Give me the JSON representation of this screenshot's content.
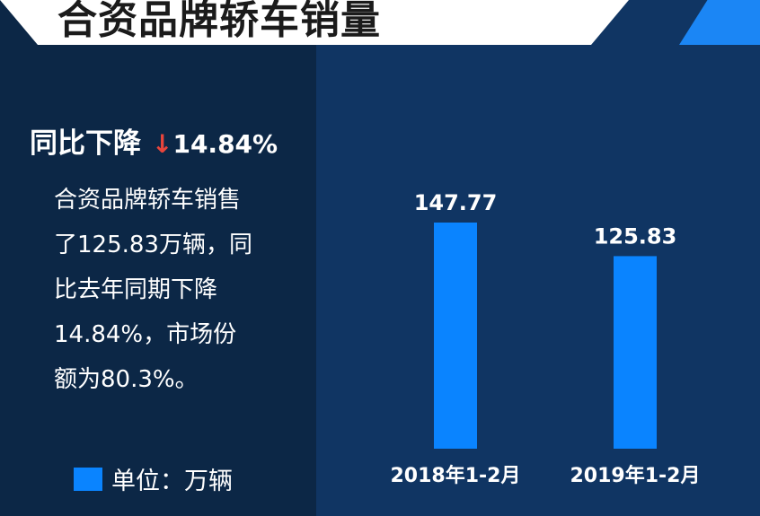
{
  "banner": {
    "title": "合资品牌轿车销量"
  },
  "summary": {
    "headline_label": "同比下降",
    "arrow": "↓",
    "headline_value": "14.84%",
    "description_lines": [
      "合资品牌轿车销售",
      "了125.83万辆，同",
      "比去年同期下降",
      "14.84%，市场份",
      "额为80.3%。"
    ]
  },
  "legend": {
    "label": "单位：万辆"
  },
  "colors": {
    "bar": "#0a84ff",
    "down_arrow": "#e8453c",
    "accent": "#1b86f5",
    "panel_left": "#0c2746",
    "panel_right": "#103563"
  },
  "chart_data": {
    "type": "bar",
    "categories": [
      "2018年1-2月",
      "2019年1-2月"
    ],
    "values": [
      147.77,
      125.83
    ],
    "data_labels": [
      "147.77",
      "125.83"
    ],
    "ylim": [
      0,
      147.77
    ],
    "grid": false,
    "axes_visible": false
  }
}
